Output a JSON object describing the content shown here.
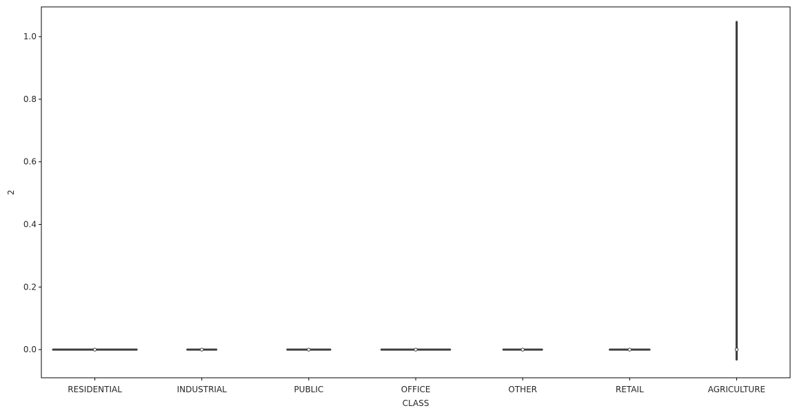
{
  "chart_data": {
    "type": "violin",
    "title": "",
    "xlabel": "CLASS",
    "ylabel": "2",
    "categories": [
      "RESIDENTIAL",
      "INDUSTRIAL",
      "PUBLIC",
      "OFFICE",
      "OTHER",
      "RETAIL",
      "AGRICULTURE"
    ],
    "ylim": [
      -0.09,
      1.095
    ],
    "yticks": [
      0.0,
      0.2,
      0.4,
      0.6,
      0.8,
      1.0
    ],
    "ytick_labels": [
      "0.0",
      "0.2",
      "0.4",
      "0.6",
      "0.8",
      "1.0"
    ],
    "series": [
      {
        "category": "RESIDENTIAL",
        "min": 0.0,
        "max": 0.0,
        "median": 0.0,
        "density_width": 0.8
      },
      {
        "category": "INDUSTRIAL",
        "min": 0.0,
        "max": 0.0,
        "median": 0.0,
        "density_width": 0.29
      },
      {
        "category": "PUBLIC",
        "min": 0.0,
        "max": 0.0,
        "median": 0.0,
        "density_width": 0.42
      },
      {
        "category": "OFFICE",
        "min": 0.0,
        "max": 0.0,
        "median": 0.0,
        "density_width": 0.66
      },
      {
        "category": "OTHER",
        "min": 0.0,
        "max": 0.0,
        "median": 0.0,
        "density_width": 0.38
      },
      {
        "category": "RETAIL",
        "min": 0.0,
        "max": 0.0,
        "median": 0.0,
        "density_width": 0.39
      },
      {
        "category": "AGRICULTURE",
        "min": -0.035,
        "max": 1.05,
        "median": 0.0,
        "density_width": 0.02
      }
    ],
    "grid": false,
    "legend": "none",
    "colors": {
      "violin": "#3d3d3d",
      "median_marker": "#ffffff",
      "axes": "#000000"
    }
  }
}
